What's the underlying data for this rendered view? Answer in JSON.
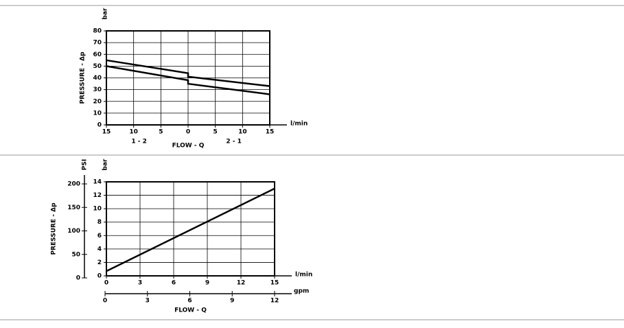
{
  "chart_data": [
    {
      "type": "line",
      "ylabel": "PRESSURE - Δp",
      "yunit": "bar",
      "xlabel": "FLOW - Q",
      "xunit": "l/min",
      "x_groups": [
        "1 - 2",
        "2 - 1"
      ],
      "xlim": [
        -15,
        15
      ],
      "xticks": [
        {
          "value": -15,
          "label": "15"
        },
        {
          "value": -10,
          "label": "10"
        },
        {
          "value": -5,
          "label": "5"
        },
        0,
        5,
        10,
        15
      ],
      "ylim": [
        0,
        80
      ],
      "yticks": [
        0,
        10,
        20,
        30,
        40,
        50,
        60,
        70,
        80
      ],
      "grid": true,
      "series": [
        {
          "color": "#000000",
          "x": [
            -15,
            0,
            0,
            15
          ],
          "values": [
            55,
            44,
            41,
            33
          ]
        },
        {
          "color": "#000000",
          "x": [
            -15,
            0,
            0,
            15
          ],
          "values": [
            50,
            38,
            35,
            26
          ]
        }
      ]
    },
    {
      "type": "line",
      "ylabel": "PRESSURE - Δp",
      "yunit": "bar",
      "y2unit": "PSI",
      "xlabel": "FLOW - Q",
      "xunit": "l/min",
      "x2unit": "gpm",
      "xlim": [
        0,
        15
      ],
      "xticks": [
        0,
        3,
        6,
        9,
        12,
        15
      ],
      "x2lim": [
        0,
        12
      ],
      "x2ticks": [
        0,
        3,
        6,
        9,
        12
      ],
      "ylim": [
        0,
        14
      ],
      "yticks": [
        0,
        2,
        4,
        6,
        8,
        10,
        12,
        14
      ],
      "y2lim": [
        0,
        200
      ],
      "y2ticks": [
        0,
        50,
        100,
        150,
        200
      ],
      "grid": true,
      "series": [
        {
          "color": "#000000",
          "x": [
            0,
            15
          ],
          "values": [
            0.7,
            13
          ]
        }
      ]
    }
  ]
}
